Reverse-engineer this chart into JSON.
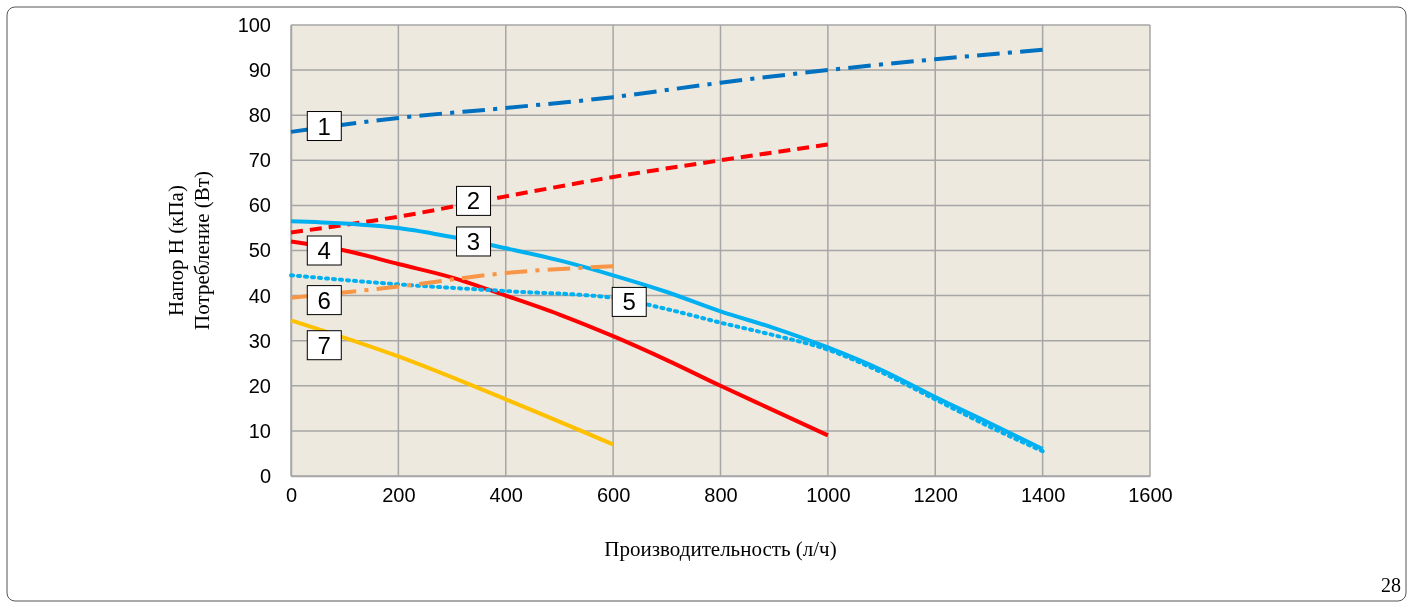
{
  "chart_data": {
    "type": "line",
    "xlabel": "Производительность (л/ч)",
    "ylabel": "Напор H (кПа)\nПотребление (Вт)",
    "xlim": [
      0,
      1600
    ],
    "xticks": [
      0,
      200,
      400,
      600,
      800,
      1000,
      1200,
      1400,
      1600
    ],
    "ylim": [
      0,
      100
    ],
    "yticks": [
      0,
      10,
      20,
      30,
      40,
      50,
      60,
      70,
      80,
      90,
      100
    ],
    "grid": true,
    "marker": "none",
    "series": [
      {
        "color": "#0070c0",
        "line_style": "dashdot",
        "x": [
          0,
          200,
          400,
          600,
          800,
          1000,
          1200,
          1400
        ],
        "values": [
          76.3,
          79.4,
          81.6,
          84,
          87.2,
          90,
          92.4,
          94.5
        ]
      },
      {
        "color": "#ff0000",
        "line_style": "dashed",
        "x": [
          0,
          200,
          400,
          600,
          800,
          1000
        ],
        "values": [
          54,
          57.5,
          62,
          66.3,
          70,
          73.5
        ]
      },
      {
        "color": "#00b0f0",
        "line_style": "solid",
        "x": [
          0,
          100,
          200,
          300,
          400,
          500,
          600,
          700,
          800,
          900,
          1000,
          1100,
          1200,
          1300,
          1400
        ],
        "values": [
          56.5,
          56,
          55,
          53,
          50.5,
          47.8,
          44.5,
          40.8,
          36.5,
          32.8,
          28.5,
          23.5,
          17.5,
          11.8,
          6
        ]
      },
      {
        "color": "#ff0000",
        "line_style": "solid",
        "x": [
          0,
          100,
          200,
          300,
          400,
          500,
          600,
          700,
          800,
          900,
          1000
        ],
        "values": [
          52,
          50,
          47,
          44,
          40,
          35.8,
          31,
          25.7,
          20,
          14.5,
          9
        ]
      },
      {
        "color": "#00b0f0",
        "line_style": "dotted",
        "x": [
          0,
          200,
          400,
          600,
          700,
          800,
          900,
          1000,
          1100,
          1200,
          1300,
          1400
        ],
        "values": [
          44.5,
          42.5,
          41,
          39.5,
          37,
          34,
          31.2,
          28,
          23,
          17,
          11,
          5.5
        ]
      },
      {
        "color": "#f79646",
        "line_style": "dashdot",
        "x": [
          0,
          200,
          400,
          600
        ],
        "values": [
          39.5,
          42,
          45,
          46.5
        ]
      },
      {
        "color": "#ffc000",
        "line_style": "solid",
        "x": [
          0,
          200,
          400,
          600
        ],
        "values": [
          34.5,
          26.5,
          17,
          7
        ]
      }
    ],
    "annotations": [
      {
        "text": "1",
        "x": 62,
        "y": 77.6
      },
      {
        "text": "2",
        "x": 340,
        "y": 61
      },
      {
        "text": "3",
        "x": 340,
        "y": 52
      },
      {
        "text": "4",
        "x": 62,
        "y": 50
      },
      {
        "text": "5",
        "x": 630,
        "y": 38.6
      },
      {
        "text": "6",
        "x": 62,
        "y": 39
      },
      {
        "text": "7",
        "x": 62,
        "y": 29
      },
      "28"
    ]
  }
}
